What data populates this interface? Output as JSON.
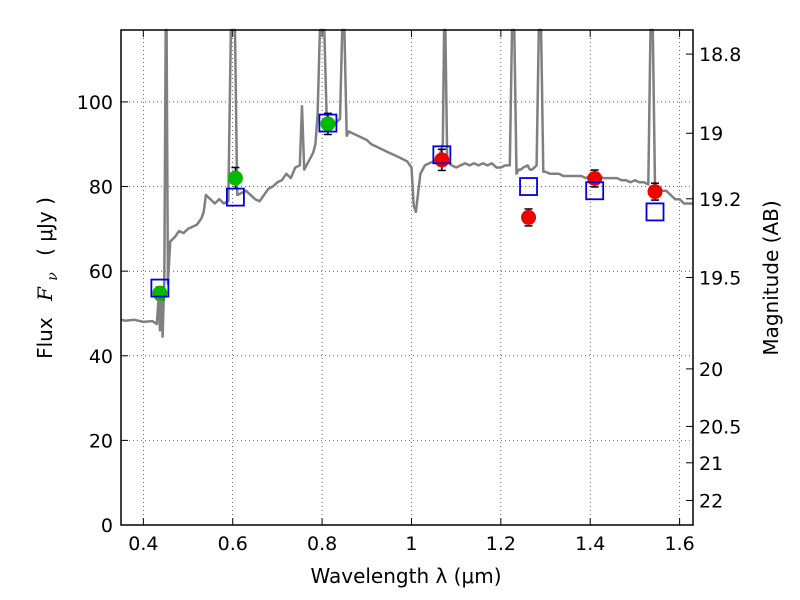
{
  "chart_data": {
    "type": "scatter",
    "xlabel": "Wavelength  λ (μm)",
    "ylabel_prefix": "Flux",
    "ylabel_symbol": "F",
    "ylabel_subscript": "ν",
    "ylabel_suffix": "( μJy )",
    "y2label": "Magnitude (AB)",
    "xlim": [
      0.35,
      1.63
    ],
    "ylim": [
      0,
      117
    ],
    "grid": true,
    "x_ticks": [
      0.4,
      0.6,
      0.8,
      1.0,
      1.2,
      1.4,
      1.6
    ],
    "x_tick_labels": [
      "0.4",
      "0.6",
      "0.8",
      "1",
      "1.2",
      "1.4",
      "1.6"
    ],
    "y_ticks": [
      0,
      20,
      40,
      60,
      80,
      100
    ],
    "y_tick_labels": [
      "0",
      "20",
      "40",
      "60",
      "80",
      "100"
    ],
    "y2_ticks": [
      {
        "label": "18.8",
        "flux": 111.3
      },
      {
        "label": "19",
        "flux": 92.6
      },
      {
        "label": "19.2",
        "flux": 77.1
      },
      {
        "label": "19.5",
        "flux": 58.5
      },
      {
        "label": "20",
        "flux": 36.9
      },
      {
        "label": "20.5",
        "flux": 23.3
      },
      {
        "label": "21",
        "flux": 14.7
      },
      {
        "label": "22",
        "flux": 5.8
      }
    ],
    "colors": {
      "spectrum": "#808080",
      "green_points": "#00bb00",
      "red_points": "#ee0000",
      "model_boxes": "#0000dd",
      "error_bars": "#000000"
    },
    "series": [
      {
        "marker": "line",
        "points": [
          [
            0.35,
            48.5
          ],
          [
            0.36,
            48.3
          ],
          [
            0.38,
            48.5
          ],
          [
            0.4,
            48.0
          ],
          [
            0.42,
            48.2
          ],
          [
            0.43,
            47.5
          ],
          [
            0.435,
            55
          ],
          [
            0.437,
            46
          ],
          [
            0.44,
            56
          ],
          [
            0.443,
            44.5
          ],
          [
            0.447,
            58
          ],
          [
            0.45,
            117
          ],
          [
            0.452,
            117
          ],
          [
            0.455,
            57
          ],
          [
            0.46,
            67
          ],
          [
            0.47,
            68
          ],
          [
            0.48,
            69.5
          ],
          [
            0.49,
            69
          ],
          [
            0.5,
            70
          ],
          [
            0.51,
            70.5
          ],
          [
            0.52,
            71
          ],
          [
            0.53,
            72.5
          ],
          [
            0.535,
            74
          ],
          [
            0.54,
            78
          ],
          [
            0.55,
            77
          ],
          [
            0.56,
            76
          ],
          [
            0.57,
            77
          ],
          [
            0.58,
            76
          ],
          [
            0.59,
            76.5
          ],
          [
            0.596,
            117
          ],
          [
            0.6,
            117
          ],
          [
            0.605,
            117
          ],
          [
            0.61,
            78
          ],
          [
            0.62,
            78.5
          ],
          [
            0.63,
            79
          ],
          [
            0.64,
            78
          ],
          [
            0.65,
            77
          ],
          [
            0.66,
            76.5
          ],
          [
            0.67,
            78
          ],
          [
            0.68,
            79.5
          ],
          [
            0.69,
            80
          ],
          [
            0.7,
            81
          ],
          [
            0.71,
            81.5
          ],
          [
            0.72,
            83
          ],
          [
            0.73,
            82
          ],
          [
            0.74,
            84.5
          ],
          [
            0.75,
            85
          ],
          [
            0.755,
            99
          ],
          [
            0.76,
            84
          ],
          [
            0.77,
            86
          ],
          [
            0.78,
            88
          ],
          [
            0.785,
            90
          ],
          [
            0.79,
            97
          ],
          [
            0.795,
            117
          ],
          [
            0.8,
            117
          ],
          [
            0.805,
            117
          ],
          [
            0.81,
            97
          ],
          [
            0.82,
            95
          ],
          [
            0.83,
            95
          ],
          [
            0.84,
            96
          ],
          [
            0.845,
            117
          ],
          [
            0.85,
            117
          ],
          [
            0.855,
            92
          ],
          [
            0.86,
            93
          ],
          [
            0.87,
            92.5
          ],
          [
            0.88,
            92
          ],
          [
            0.89,
            91.5
          ],
          [
            0.9,
            91
          ],
          [
            0.91,
            90
          ],
          [
            0.92,
            89.5
          ],
          [
            0.93,
            89
          ],
          [
            0.94,
            88.5
          ],
          [
            0.95,
            88
          ],
          [
            0.96,
            87.5
          ],
          [
            0.97,
            87
          ],
          [
            0.98,
            86.5
          ],
          [
            0.99,
            86
          ],
          [
            1.0,
            84.5
          ],
          [
            1.005,
            75.5
          ],
          [
            1.01,
            74
          ],
          [
            1.02,
            83
          ],
          [
            1.03,
            85
          ],
          [
            1.04,
            85.5
          ],
          [
            1.05,
            86
          ],
          [
            1.06,
            86.5
          ],
          [
            1.065,
            88
          ],
          [
            1.07,
            90
          ],
          [
            1.073,
            117
          ],
          [
            1.076,
            117
          ],
          [
            1.08,
            86
          ],
          [
            1.09,
            85
          ],
          [
            1.1,
            84.5
          ],
          [
            1.11,
            85
          ],
          [
            1.12,
            85.5
          ],
          [
            1.13,
            85
          ],
          [
            1.14,
            85.5
          ],
          [
            1.15,
            85
          ],
          [
            1.16,
            85.5
          ],
          [
            1.17,
            85
          ],
          [
            1.18,
            85.5
          ],
          [
            1.19,
            84.5
          ],
          [
            1.2,
            84.5
          ],
          [
            1.21,
            85
          ],
          [
            1.22,
            85
          ],
          [
            1.225,
            117
          ],
          [
            1.23,
            117
          ],
          [
            1.235,
            83
          ],
          [
            1.24,
            84
          ],
          [
            1.245,
            84
          ],
          [
            1.25,
            84.5
          ],
          [
            1.26,
            85
          ],
          [
            1.265,
            84
          ],
          [
            1.27,
            84
          ],
          [
            1.275,
            84.5
          ],
          [
            1.28,
            85
          ],
          [
            1.285,
            117
          ],
          [
            1.29,
            117
          ],
          [
            1.295,
            83.5
          ],
          [
            1.3,
            83.5
          ],
          [
            1.31,
            83
          ],
          [
            1.32,
            83
          ],
          [
            1.33,
            83
          ],
          [
            1.34,
            82.5
          ],
          [
            1.35,
            82.5
          ],
          [
            1.36,
            82.5
          ],
          [
            1.37,
            82.5
          ],
          [
            1.38,
            82.5
          ],
          [
            1.39,
            82
          ],
          [
            1.4,
            82.5
          ],
          [
            1.41,
            82
          ],
          [
            1.42,
            82.5
          ],
          [
            1.43,
            82
          ],
          [
            1.44,
            82
          ],
          [
            1.45,
            82
          ],
          [
            1.46,
            82
          ],
          [
            1.47,
            81.5
          ],
          [
            1.48,
            81.5
          ],
          [
            1.49,
            81
          ],
          [
            1.5,
            81.5
          ],
          [
            1.51,
            81
          ],
          [
            1.52,
            81
          ],
          [
            1.53,
            80.5
          ],
          [
            1.535,
            117
          ],
          [
            1.54,
            117
          ],
          [
            1.545,
            80
          ],
          [
            1.55,
            80
          ],
          [
            1.56,
            79
          ],
          [
            1.57,
            79
          ],
          [
            1.58,
            78
          ],
          [
            1.59,
            77
          ],
          [
            1.6,
            77
          ],
          [
            1.61,
            76
          ],
          [
            1.63,
            76
          ]
        ]
      },
      {
        "marker": "circle-green",
        "points": [
          {
            "x": 0.437,
            "y": 54.8,
            "err": 1.5
          },
          {
            "x": 0.606,
            "y": 82.0,
            "err": 2.5
          },
          {
            "x": 0.813,
            "y": 94.8,
            "err": 2.5
          }
        ]
      },
      {
        "marker": "circle-red",
        "points": [
          {
            "x": 1.068,
            "y": 86.3,
            "err": 2.5
          },
          {
            "x": 1.262,
            "y": 72.7,
            "err": 2.0
          },
          {
            "x": 1.41,
            "y": 81.9,
            "err": 2.0
          },
          {
            "x": 1.545,
            "y": 78.8,
            "err": 2.0
          }
        ]
      },
      {
        "marker": "square-blue",
        "points": [
          {
            "x": 0.437,
            "y": 56.0
          },
          {
            "x": 0.606,
            "y": 77.5
          },
          {
            "x": 0.813,
            "y": 95.0
          },
          {
            "x": 1.068,
            "y": 87.5
          },
          {
            "x": 1.262,
            "y": 80.0
          },
          {
            "x": 1.41,
            "y": 79.0
          },
          {
            "x": 1.545,
            "y": 74.0
          }
        ]
      }
    ]
  }
}
